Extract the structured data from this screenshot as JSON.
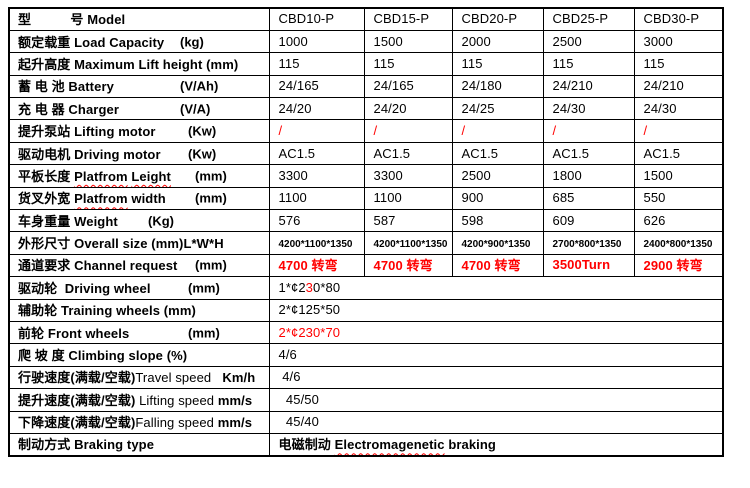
{
  "colors": {
    "text": "#000000",
    "accent_red": "#ff0000",
    "border": "#000000",
    "background": "#ffffff"
  },
  "table": {
    "rows": [
      {
        "key": "model",
        "label": [
          {
            "t": "型　　　号 Model",
            "b": true
          }
        ],
        "cells": [
          {
            "t": "CBD10-P"
          },
          {
            "t": "CBD15-P"
          },
          {
            "t": "CBD20-P"
          },
          {
            "t": "CBD25-P"
          },
          {
            "t": "CBD30-P"
          }
        ]
      },
      {
        "key": "load-capacity",
        "label": [
          {
            "t": "额定载重 Load Capacity",
            "b": true
          }
        ],
        "unit": {
          "t": "(kg)",
          "pos": "mid"
        },
        "cells": [
          {
            "t": "1000"
          },
          {
            "t": "1500"
          },
          {
            "t": "2000"
          },
          {
            "t": "2500"
          },
          {
            "t": "3000"
          }
        ]
      },
      {
        "key": "lift-height",
        "label": [
          {
            "t": "起升高度 Maximum Lift height (mm)",
            "b": true
          }
        ],
        "cells": [
          {
            "t": "115"
          },
          {
            "t": "115"
          },
          {
            "t": "115"
          },
          {
            "t": "115"
          },
          {
            "t": "115"
          }
        ]
      },
      {
        "key": "battery",
        "label": [
          {
            "t": "蓄 电 池 Battery",
            "b": true
          }
        ],
        "unit": {
          "t": "(V/Ah)",
          "pos": "mid"
        },
        "cells": [
          {
            "t": "24/165"
          },
          {
            "t": "24/165"
          },
          {
            "t": "24/180"
          },
          {
            "t": "24/210"
          },
          {
            "t": "24/210"
          }
        ]
      },
      {
        "key": "charger",
        "label": [
          {
            "t": "充 电 器 Charger",
            "b": true
          }
        ],
        "unit": {
          "t": "(V/A)",
          "pos": "mid"
        },
        "cells": [
          {
            "t": "24/20"
          },
          {
            "t": "24/20"
          },
          {
            "t": "24/25"
          },
          {
            "t": "24/30"
          },
          {
            "t": "24/30"
          }
        ]
      },
      {
        "key": "lifting-motor",
        "label": [
          {
            "t": "提升泵站 Lifting motor",
            "b": true
          }
        ],
        "unit": {
          "t": "(Kw)",
          "pos": "far"
        },
        "cells": [
          {
            "t": "/",
            "red": true
          },
          {
            "t": "/",
            "red": true
          },
          {
            "t": "/",
            "red": true
          },
          {
            "t": "/",
            "red": true
          },
          {
            "t": "/",
            "red": true
          }
        ]
      },
      {
        "key": "driving-motor",
        "label": [
          {
            "t": "驱动电机 Driving motor",
            "b": true
          }
        ],
        "unit": {
          "t": "(Kw)",
          "pos": "far"
        },
        "cells": [
          {
            "t": "AC1.5"
          },
          {
            "t": "AC1.5"
          },
          {
            "t": "AC1.5"
          },
          {
            "t": "AC1.5"
          },
          {
            "t": "AC1.5"
          }
        ]
      },
      {
        "key": "platform-length",
        "label": [
          {
            "t": "平板长度 ",
            "b": true
          },
          {
            "t": "Platfrom",
            "b": true,
            "sq": true
          },
          {
            "t": " ",
            "b": true
          },
          {
            "t": "Leight",
            "b": true,
            "sq": true
          }
        ],
        "unit": {
          "t": "(mm)",
          "pos": "xfar"
        },
        "cells": [
          {
            "t": "3300"
          },
          {
            "t": "3300"
          },
          {
            "t": "2500"
          },
          {
            "t": "1800"
          },
          {
            "t": "1500"
          }
        ]
      },
      {
        "key": "platform-width",
        "label": [
          {
            "t": "货叉外宽 ",
            "b": true
          },
          {
            "t": "Platfrom",
            "b": true,
            "sq": true
          },
          {
            "t": " width",
            "b": true
          }
        ],
        "unit": {
          "t": "(mm)",
          "pos": "xfar"
        },
        "cells": [
          {
            "t": "1100"
          },
          {
            "t": "1100"
          },
          {
            "t": "900"
          },
          {
            "t": "685"
          },
          {
            "t": "550"
          }
        ]
      },
      {
        "key": "weight",
        "label": [
          {
            "t": "车身重量 Weight",
            "b": true
          }
        ],
        "unit": {
          "t": "(Kg)",
          "pos": "near"
        },
        "cells": [
          {
            "t": "576"
          },
          {
            "t": "587"
          },
          {
            "t": "598"
          },
          {
            "t": "609"
          },
          {
            "t": "626"
          }
        ]
      },
      {
        "key": "overall-size",
        "label": [
          {
            "t": "外形尺寸 Overall size (mm)L*W*H",
            "b": true
          }
        ],
        "cells": [
          {
            "t": "4200*1100*1350",
            "small": true
          },
          {
            "t": "4200*1100*1350",
            "small": true
          },
          {
            "t": "4200*900*1350",
            "small": true
          },
          {
            "t": "2700*800*1350",
            "small": true
          },
          {
            "t": "2400*800*1350",
            "small": true
          }
        ]
      },
      {
        "key": "channel-request",
        "label": [
          {
            "t": "通道要求 Channel request",
            "b": true
          }
        ],
        "unit": {
          "t": "(mm)",
          "pos": "xfar"
        },
        "cells": [
          {
            "t": "4700 转弯",
            "red": true,
            "bold": true
          },
          {
            "t": "4700 转弯",
            "red": true,
            "bold": true
          },
          {
            "t": "4700 转弯",
            "red": true,
            "bold": true
          },
          {
            "t": "3500Turn",
            "red": true,
            "bold": true
          },
          {
            "t": "2900 转弯",
            "red": true,
            "bold": true
          }
        ]
      },
      {
        "key": "driving-wheel",
        "label": [
          {
            "t": "驱动轮  Driving wheel",
            "b": true
          }
        ],
        "unit": {
          "t": "(mm)",
          "pos": "far"
        },
        "merged": true,
        "cells": [
          {
            "parts": [
              {
                "t": "1*¢2"
              },
              {
                "t": "3",
                "red": true
              },
              {
                "t": "0*80"
              }
            ]
          }
        ]
      },
      {
        "key": "training-wheels",
        "label": [
          {
            "t": "辅助轮 Training wheels (mm)",
            "b": true
          }
        ],
        "merged": true,
        "cells": [
          {
            "t": "2*¢125*50"
          }
        ]
      },
      {
        "key": "front-wheels",
        "label": [
          {
            "t": "前轮 Front wheels",
            "b": true
          }
        ],
        "unit": {
          "t": "(mm)",
          "pos": "far"
        },
        "merged": true,
        "cells": [
          {
            "t": "2*¢230*70",
            "red": true
          }
        ]
      },
      {
        "key": "climbing-slope",
        "label": [
          {
            "t": "爬 坡 度 Climbing slope (%)",
            "b": true
          }
        ],
        "merged": true,
        "cells": [
          {
            "t": "4/6"
          }
        ]
      },
      {
        "key": "travel-speed",
        "label": [
          {
            "t": "行驶速度(满载/空载)",
            "b": true
          },
          {
            "t": "Travel speed",
            "b": false
          },
          {
            "t": "   Km/h",
            "b": true
          }
        ],
        "merged": true,
        "cells": [
          {
            "t": " 4/6"
          }
        ]
      },
      {
        "key": "lifting-speed",
        "label": [
          {
            "t": "提升速度(满载/空载) ",
            "b": true
          },
          {
            "t": "Lifting speed ",
            "b": false
          },
          {
            "t": "mm/s",
            "b": true
          }
        ],
        "merged": true,
        "cells": [
          {
            "t": "  45/50"
          }
        ]
      },
      {
        "key": "falling-speed",
        "label": [
          {
            "t": "下降速度(满载/空载)",
            "b": true
          },
          {
            "t": "Falling speed ",
            "b": false
          },
          {
            "t": "mm/s",
            "b": true
          }
        ],
        "merged": true,
        "cells": [
          {
            "t": "  45/40"
          }
        ]
      },
      {
        "key": "braking-type",
        "label": [
          {
            "t": "制动方式 Braking type",
            "b": true
          }
        ],
        "merged": true,
        "cells": [
          {
            "parts": [
              {
                "t": "电磁制动 ",
                "b": true
              },
              {
                "t": "Electromagenetic",
                "b": true,
                "sq": true
              },
              {
                "t": " braking",
                "b": true
              }
            ]
          }
        ]
      }
    ]
  }
}
